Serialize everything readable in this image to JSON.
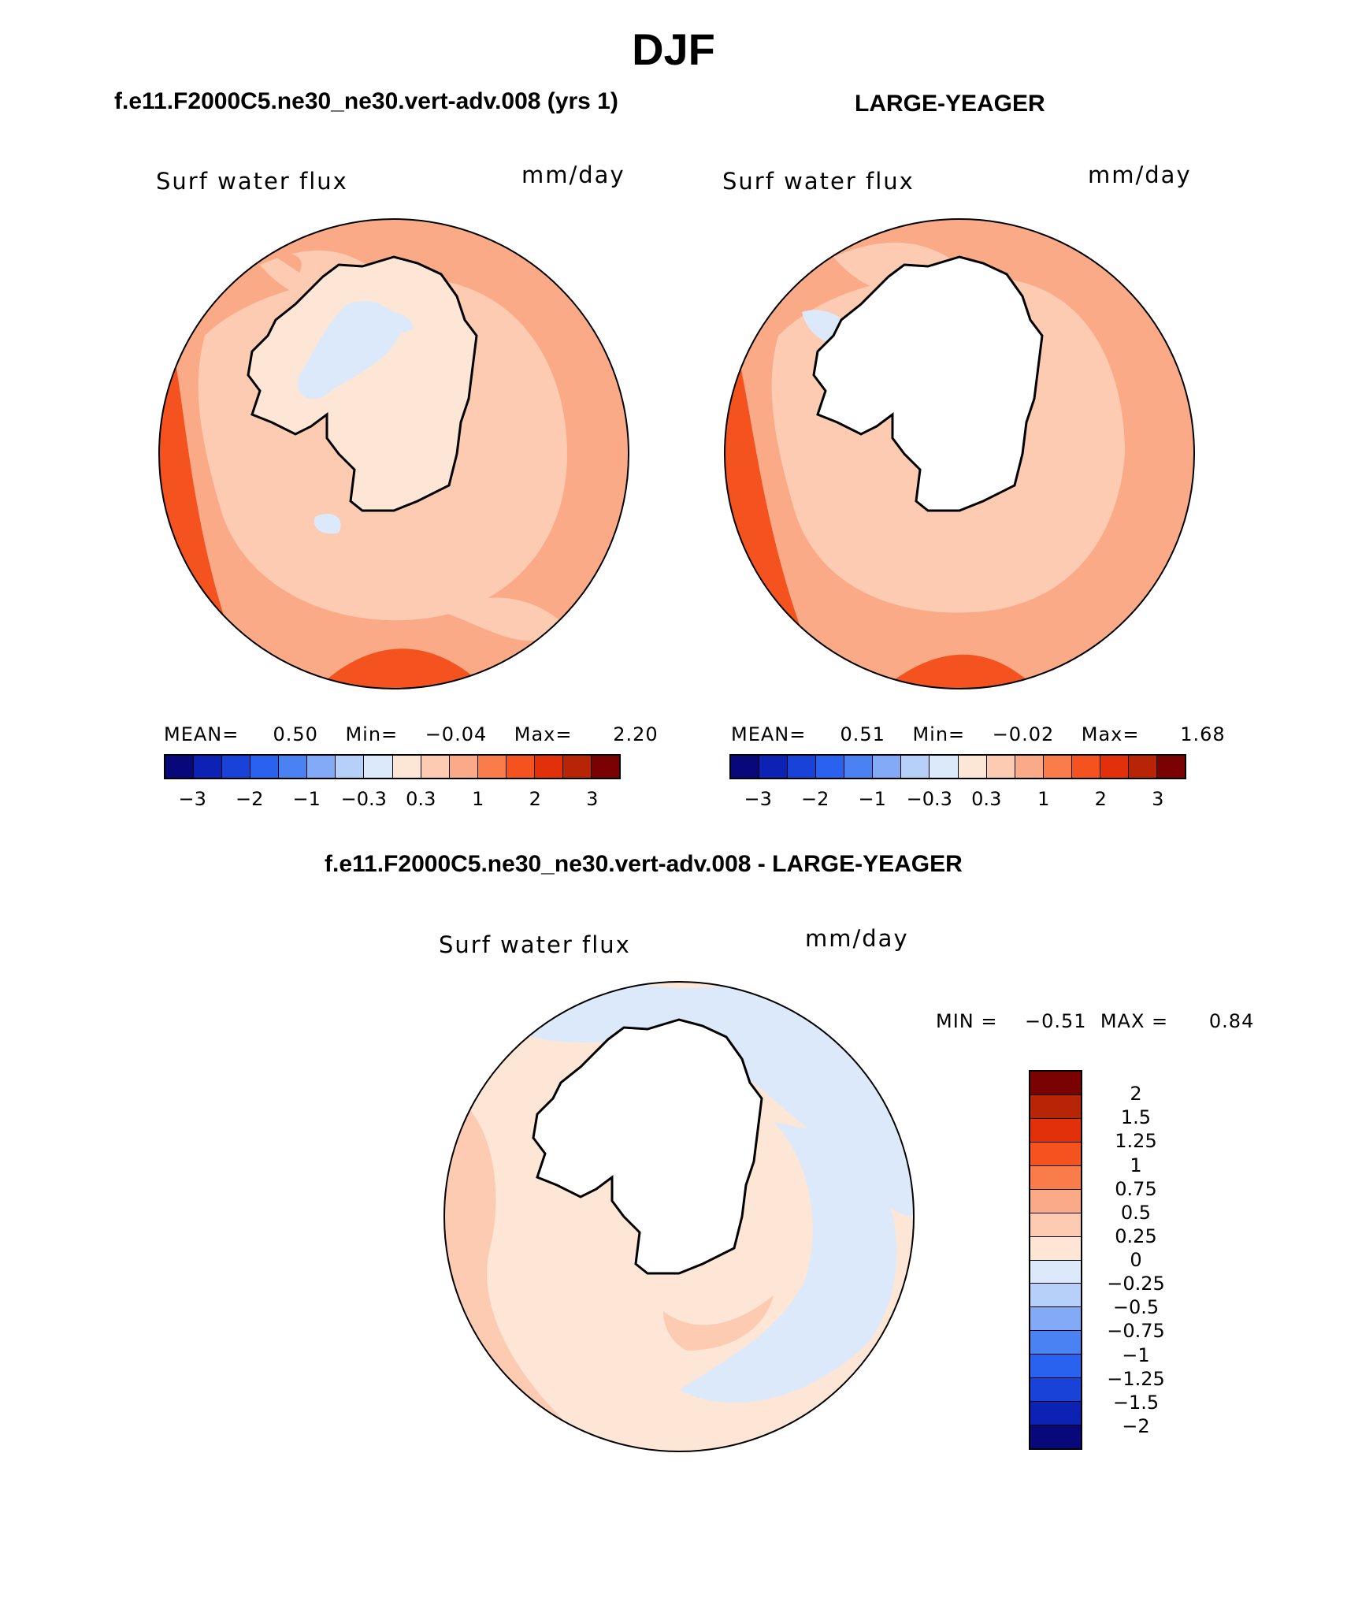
{
  "title": "DJF",
  "panel1": {
    "case_name": "f.e11.F2000C5.ne30_ne30.vert-adv.008 (yrs 1)",
    "variable": "Surf water flux",
    "units": "mm/day",
    "stats": {
      "mean_label": "MEAN=",
      "mean": "0.50",
      "min_label": "Min=",
      "min": "−0.04",
      "max_label": "Max=",
      "max": "2.20"
    }
  },
  "panel2": {
    "case_name": "LARGE-YEAGER",
    "variable": "Surf water flux",
    "units": "mm/day",
    "stats": {
      "mean_label": "MEAN=",
      "mean": "0.51",
      "min_label": "Min=",
      "min": "−0.02",
      "max_label": "Max=",
      "max": "1.68"
    }
  },
  "diff": {
    "case_name": "f.e11.F2000C5.ne30_ne30.vert-adv.008 - LARGE-YEAGER",
    "variable": "Surf water flux",
    "units": "mm/day",
    "stats": {
      "min_label": "MIN =",
      "min": "−0.51",
      "max_label": "MAX =",
      "max": "0.84"
    }
  },
  "colorbar_field": {
    "colors": [
      "#08087a",
      "#0c22b4",
      "#1842d8",
      "#2a62f0",
      "#4a82f4",
      "#82aaf6",
      "#b6d0fa",
      "#dbe9fb",
      "#fde6d6",
      "#fccbb2",
      "#fbaa88",
      "#fa7c4a",
      "#f4521e",
      "#e2300a",
      "#b82406",
      "#7a0202"
    ],
    "tick_labels": [
      "−3",
      "−2",
      "−1",
      "−0.3",
      "0.3",
      "1",
      "2",
      "3"
    ]
  },
  "colorbar_diff": {
    "colors": [
      "#7a0202",
      "#b82406",
      "#e2300a",
      "#f4521e",
      "#fa7c4a",
      "#fbaa88",
      "#fccbb2",
      "#fde6d6",
      "#dbe9fb",
      "#b6d0fa",
      "#82aaf6",
      "#4a82f4",
      "#2a62f0",
      "#1842d8",
      "#0c22b4",
      "#08087a"
    ],
    "tick_labels": [
      "2",
      "1.5",
      "1.25",
      "1",
      "0.75",
      "0.5",
      "0.25",
      "0",
      "−0.25",
      "−0.5",
      "−0.75",
      "−1",
      "−1.25",
      "−1.5",
      "−2"
    ]
  },
  "map_colors": {
    "ocean_low": "#fccbb2",
    "ocean_mid": "#fbaa88",
    "ocean_high": "#f4521e",
    "ocean_max": "#fa7c4a",
    "land_pale": "#fde6d6",
    "land_blue": "#dbe9fb",
    "diff_pos": "#fccbb2",
    "diff_pale": "#fde6d6",
    "diff_neg": "#dbe9fb",
    "diff_neg2": "#82aaf6",
    "continent": "#ffffff"
  }
}
